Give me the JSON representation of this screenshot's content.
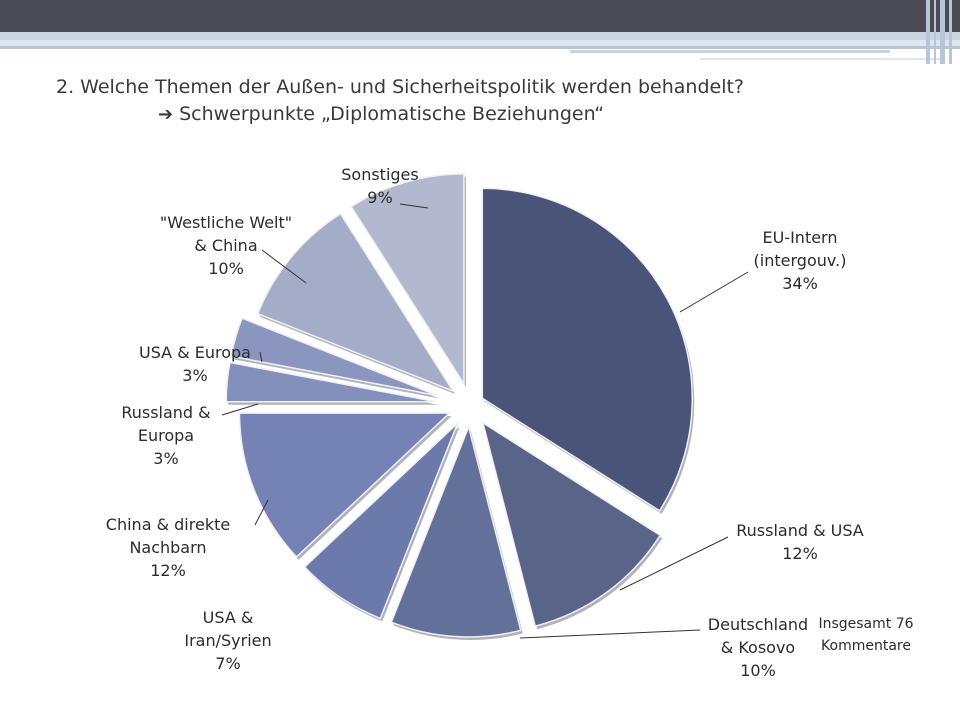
{
  "slide": {
    "title": "2. Welche Themen der Außen- und Sicherheitspolitik werden behandelt?",
    "subtitle": "Schwerpunkte „Diplomatische Beziehungen“",
    "subtitle_arrow_icon": "arrow-right-icon"
  },
  "note": [
    "Insgesamt 76",
    "Kommentare"
  ],
  "colors": {
    "slices": [
      "#4a5378",
      "#5a6489",
      "#63709a",
      "#6b7aab",
      "#7482b5",
      "#8390bb",
      "#8b96bf",
      "#a4acc8",
      "#b2b8ce"
    ]
  },
  "chart_data": {
    "type": "pie",
    "title": "",
    "exploded": true,
    "slices": [
      {
        "label": [
          "EU-Intern",
          "(intergouv.)"
        ],
        "value": 34,
        "percent_label": "34%"
      },
      {
        "label": [
          "Russland & USA"
        ],
        "value": 12,
        "percent_label": "12%"
      },
      {
        "label": [
          "Deutschland",
          "& Kosovo"
        ],
        "value": 10,
        "percent_label": "10%"
      },
      {
        "label": [
          "USA &",
          "Iran/Syrien"
        ],
        "value": 7,
        "percent_label": "7%"
      },
      {
        "label": [
          "China & direkte",
          "Nachbarn"
        ],
        "value": 12,
        "percent_label": "12%"
      },
      {
        "label": [
          "Russland &",
          "Europa"
        ],
        "value": 3,
        "percent_label": "3%"
      },
      {
        "label": [
          "USA & Europa"
        ],
        "value": 3,
        "percent_label": "3%"
      },
      {
        "label": [
          "\"Westliche Welt\"",
          "& China"
        ],
        "value": 10,
        "percent_label": "10%"
      },
      {
        "label": [
          "Sonstiges"
        ],
        "value": 9,
        "percent_label": "9%"
      }
    ]
  }
}
